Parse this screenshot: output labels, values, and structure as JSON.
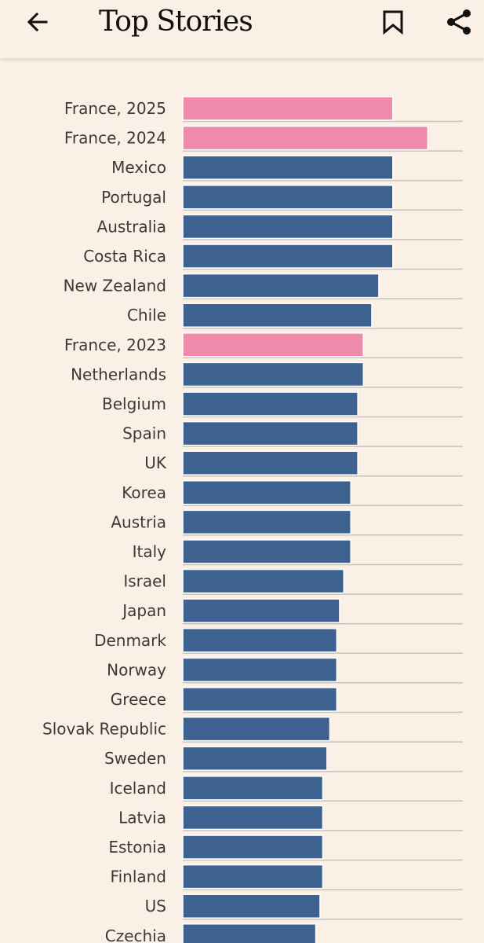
{
  "app_bar": {
    "title": "Top Stories",
    "back_icon": "arrow-left-icon",
    "bookmark_icon": "bookmark-icon",
    "share_icon": "share-icon"
  },
  "colors": {
    "background": "#fbf0e6",
    "france_bar": "#f08aab",
    "country_bar": "#3d6290",
    "gridline": "#c8c3bd"
  },
  "chart_data": {
    "type": "bar",
    "orientation": "horizontal",
    "title": "",
    "xlabel": "",
    "ylabel": "",
    "xlim": [
      0,
      100
    ],
    "categories": [
      "France, 2025",
      "France, 2024",
      "Mexico",
      "Portugal",
      "Australia",
      "Costa Rica",
      "New Zealand",
      "Chile",
      "France, 2023",
      "Netherlands",
      "Belgium",
      "Spain",
      "UK",
      "Korea",
      "Austria",
      "Italy",
      "Israel",
      "Japan",
      "Denmark",
      "Norway",
      "Greece",
      "Slovak Republic",
      "Sweden",
      "Iceland",
      "Latvia",
      "Estonia",
      "Finland",
      "US",
      "Czechia"
    ],
    "values": [
      75,
      87.5,
      75,
      75,
      75,
      75,
      70,
      67.5,
      64.5,
      64.5,
      62.5,
      62.5,
      62.5,
      60,
      60,
      60,
      57.5,
      56,
      55,
      55,
      55,
      52.5,
      51.5,
      50,
      50,
      50,
      50,
      49,
      47.5
    ],
    "highlight": [
      "France, 2025",
      "France, 2024",
      "France, 2023"
    ]
  }
}
